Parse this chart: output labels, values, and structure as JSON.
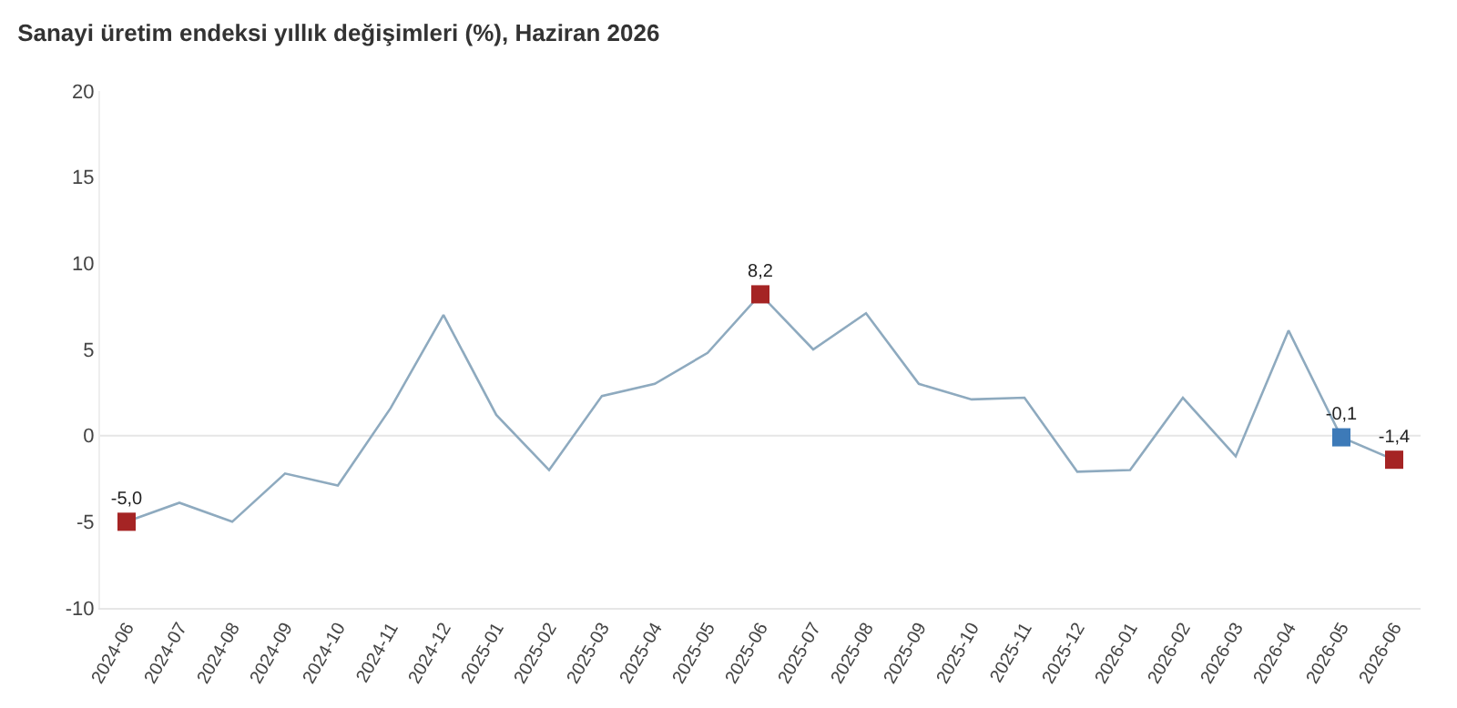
{
  "chart_data": {
    "type": "line",
    "title": "Sanayi üretim endeksi yıllık değişimleri (%), Haziran 2026",
    "categories": [
      "2024-06",
      "2024-07",
      "2024-08",
      "2024-09",
      "2024-10",
      "2024-11",
      "2024-12",
      "2025-01",
      "2025-02",
      "2025-03",
      "2025-04",
      "2025-05",
      "2025-06",
      "2025-07",
      "2025-08",
      "2025-09",
      "2025-10",
      "2025-11",
      "2025-12",
      "2026-01",
      "2026-02",
      "2026-03",
      "2026-04",
      "2026-05",
      "2026-06"
    ],
    "series": [
      {
        "color": "#8eaabf",
        "values": [
          -5.0,
          -3.9,
          -5.0,
          -2.2,
          -2.9,
          1.6,
          7.0,
          1.2,
          -2.0,
          2.3,
          3.0,
          4.8,
          8.2,
          5.0,
          7.1,
          3.0,
          2.1,
          2.2,
          -2.1,
          -2.0,
          2.2,
          -1.2,
          6.1,
          -0.1,
          -1.4
        ],
        "marker": "none"
      },
      {
        "type": "scatter",
        "marker": "square",
        "values": [
          -5.0,
          null,
          null,
          null,
          null,
          null,
          null,
          null,
          null,
          null,
          null,
          null,
          8.2,
          null,
          null,
          null,
          null,
          null,
          null,
          null,
          null,
          null,
          null,
          -0.1,
          -1.4
        ],
        "colors": [
          "#a52424",
          null,
          null,
          null,
          null,
          null,
          null,
          null,
          null,
          null,
          null,
          null,
          "#a52424",
          null,
          null,
          null,
          null,
          null,
          null,
          null,
          null,
          null,
          null,
          "#3d7ab8",
          "#a52424"
        ],
        "value_labels": [
          "-5,0",
          null,
          null,
          null,
          null,
          null,
          null,
          null,
          null,
          null,
          null,
          null,
          "8,2",
          null,
          null,
          null,
          null,
          null,
          null,
          null,
          null,
          null,
          null,
          "-0,1",
          "-1,4"
        ]
      }
    ],
    "ylim": [
      -10,
      20
    ],
    "yticks": [
      -10,
      -5,
      0,
      5,
      10,
      15,
      20
    ],
    "grid": false,
    "line_style": "solid",
    "ref_lines": [
      {
        "axis": "y",
        "value": 0,
        "color": "#e6e6e6"
      }
    ]
  }
}
